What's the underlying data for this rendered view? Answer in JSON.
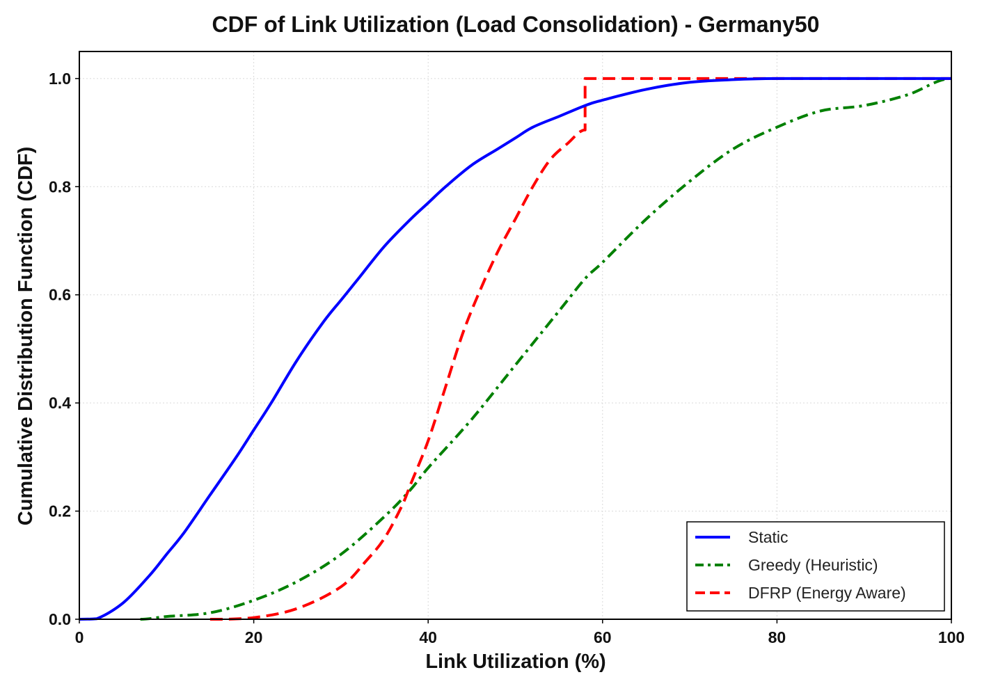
{
  "chart_data": {
    "type": "line",
    "title": "CDF of Link Utilization (Load Consolidation) - Germany50",
    "xlabel": "Link Utilization (%)",
    "ylabel": "Cumulative Distribution Function (CDF)",
    "xlim": [
      0,
      100
    ],
    "ylim": [
      0,
      1.05
    ],
    "xticks": [
      0,
      20,
      40,
      60,
      80,
      100
    ],
    "yticks": [
      0.0,
      0.2,
      0.4,
      0.6,
      0.8,
      1.0
    ],
    "xtick_labels": [
      "0",
      "20",
      "40",
      "60",
      "80",
      "100"
    ],
    "ytick_labels": [
      "0.0",
      "0.2",
      "0.4",
      "0.6",
      "0.8",
      "1.0"
    ],
    "grid": true,
    "legend_position": "bottom-right",
    "series": [
      {
        "name": "Static",
        "color": "#0000ff",
        "style": "solid",
        "x": [
          0,
          2,
          5,
          8,
          10,
          12,
          15,
          18,
          20,
          22,
          25,
          28,
          30,
          32,
          35,
          38,
          40,
          42,
          45,
          48,
          50,
          52,
          55,
          58,
          60,
          65,
          70,
          75,
          80,
          90,
          100
        ],
        "y": [
          0,
          0.001,
          0.03,
          0.08,
          0.12,
          0.16,
          0.23,
          0.3,
          0.35,
          0.4,
          0.48,
          0.55,
          0.59,
          0.63,
          0.69,
          0.74,
          0.77,
          0.8,
          0.84,
          0.87,
          0.89,
          0.91,
          0.93,
          0.95,
          0.96,
          0.98,
          0.993,
          0.998,
          1.0,
          1.0,
          1.0
        ]
      },
      {
        "name": "Greedy (Heuristic)",
        "color": "#008000",
        "style": "dashdot",
        "x": [
          7,
          10,
          15,
          20,
          25,
          30,
          35,
          38,
          40,
          45,
          50,
          55,
          58,
          60,
          65,
          70,
          75,
          80,
          85,
          90,
          95,
          100
        ],
        "y": [
          0,
          0.005,
          0.012,
          0.035,
          0.07,
          0.12,
          0.19,
          0.24,
          0.28,
          0.37,
          0.47,
          0.57,
          0.63,
          0.66,
          0.74,
          0.81,
          0.87,
          0.91,
          0.94,
          0.95,
          0.97,
          1.0
        ]
      },
      {
        "name": "DFRP (Energy Aware)",
        "color": "#ff0000",
        "style": "dashed",
        "x": [
          15,
          20,
          25,
          30,
          33,
          35,
          37,
          38,
          40,
          42,
          44,
          46,
          48,
          50,
          52,
          54,
          56,
          58,
          58,
          62,
          70,
          80,
          90,
          100
        ],
        "y": [
          0,
          0.003,
          0.02,
          0.06,
          0.11,
          0.15,
          0.21,
          0.25,
          0.33,
          0.43,
          0.53,
          0.61,
          0.68,
          0.74,
          0.8,
          0.85,
          0.88,
          0.905,
          1.0,
          1.0,
          1.0,
          1.0,
          1.0,
          1.0
        ]
      }
    ]
  }
}
